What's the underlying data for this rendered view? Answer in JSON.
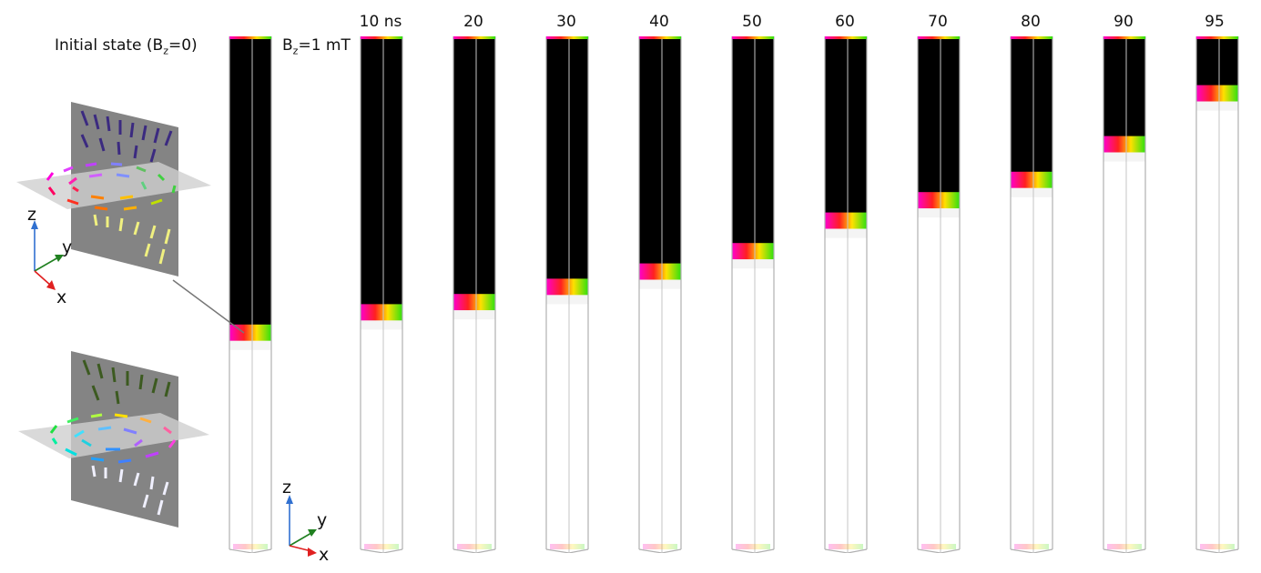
{
  "labels": {
    "initial_prefix": "Initial state (B",
    "initial_sub": "z",
    "initial_suffix": "=0)",
    "field_prefix": "B",
    "field_sub": "z",
    "field_suffix": "=1 mT"
  },
  "time_labels": [
    "10 ns",
    "20",
    "30",
    "40",
    "50",
    "60",
    "70",
    "80",
    "90",
    "95"
  ],
  "axes": {
    "z": "z",
    "y": "y",
    "x": "x"
  },
  "colors": {
    "core_black": "#000000",
    "wall_magenta": "#ff00cc",
    "wall_red": "#ff2020",
    "wall_yellow": "#ffe000",
    "wall_green": "#30e010",
    "axis_z": "#3070d0",
    "axis_y": "#208020",
    "axis_x": "#e02020"
  },
  "wall_fraction": {
    "initial": 0.58,
    "snapshots": [
      0.54,
      0.52,
      0.49,
      0.46,
      0.42,
      0.36,
      0.32,
      0.28,
      0.21,
      0.11
    ]
  }
}
